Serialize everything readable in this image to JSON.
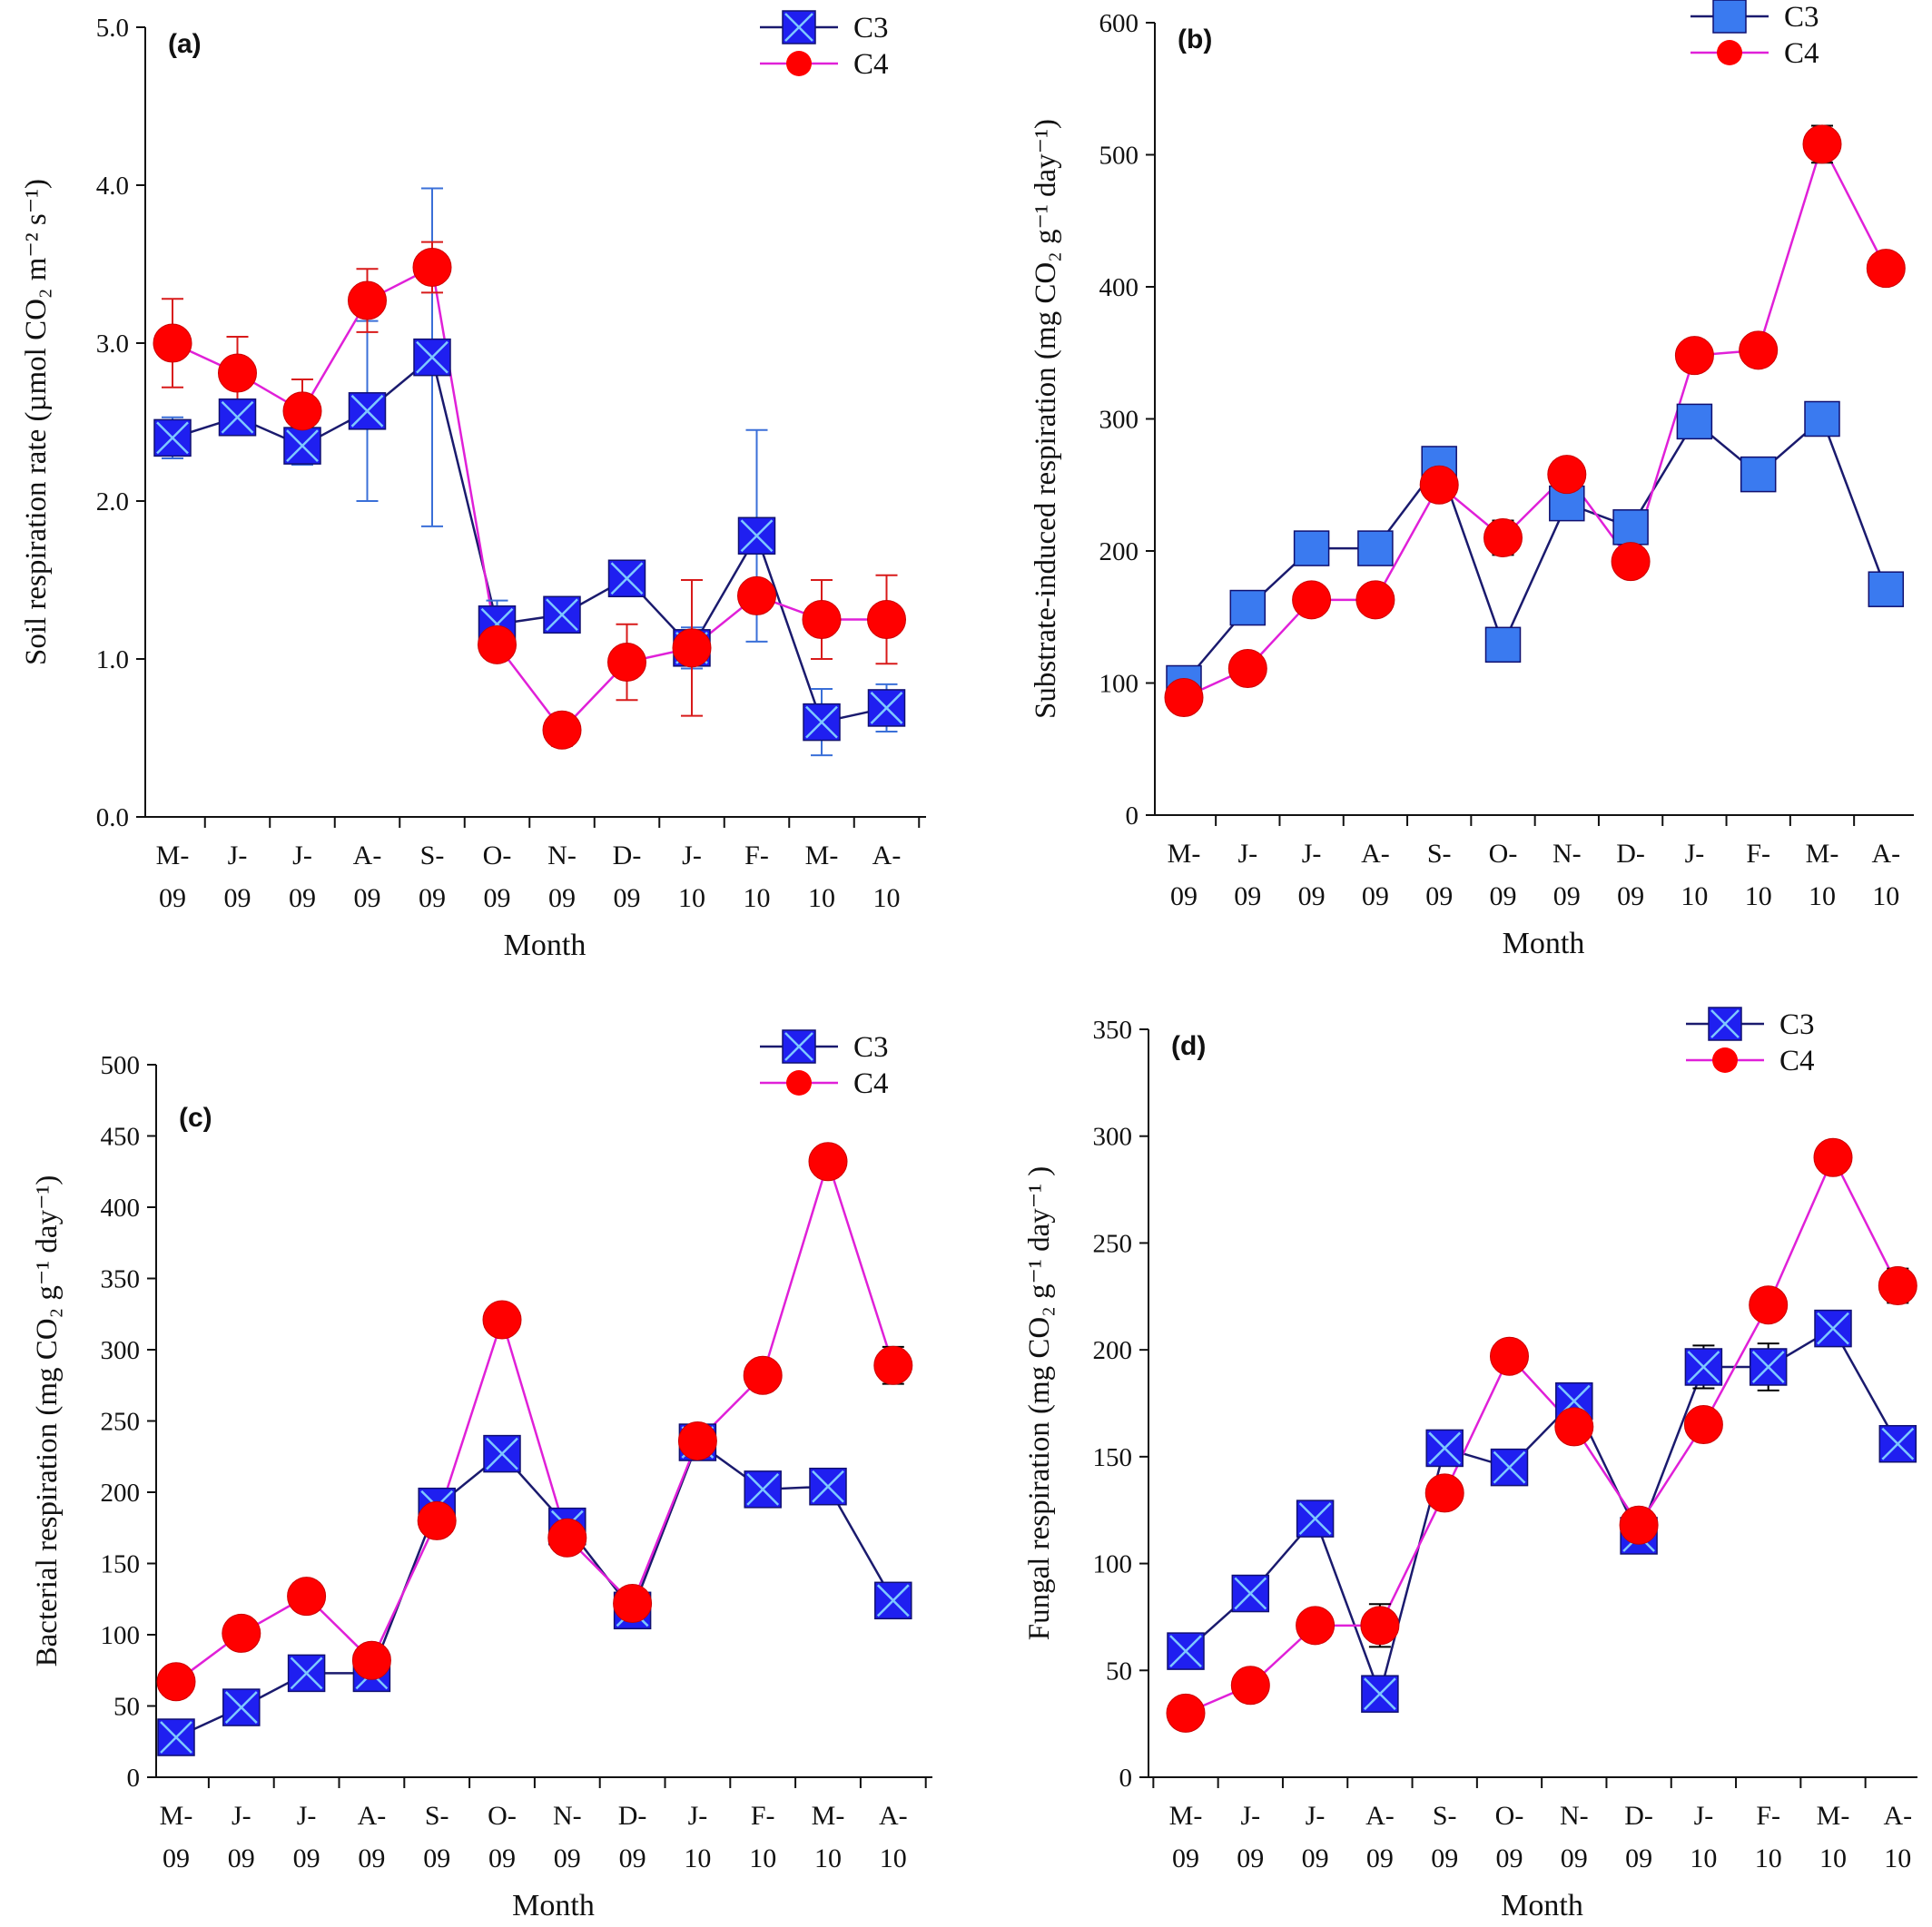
{
  "chart_data": [
    {
      "panel": "(a)",
      "type": "line",
      "categories": [
        "M-\n09",
        "J-\n09",
        "J-\n09",
        "A-\n09",
        "S-\n09",
        "O-\n09",
        "N-\n09",
        "D-\n09",
        "J-\n10",
        "F-\n10",
        "M-\n10",
        "A-\n10"
      ],
      "xlabel": "Month",
      "ylabel": "Soil respiration rate  (µmol CO₂ m⁻² s⁻¹)",
      "ylim": [
        0,
        5
      ],
      "yticks": [
        "0.0",
        "1.0",
        "2.0",
        "3.0",
        "4.0",
        "5.0"
      ],
      "legend": "top-right",
      "series": [
        {
          "name": "C3",
          "marker": "square-x",
          "values": [
            2.4,
            2.53,
            2.35,
            2.57,
            2.91,
            1.22,
            1.28,
            1.51,
            1.07,
            1.78,
            0.6,
            0.69
          ],
          "errors": [
            0.13,
            0.1,
            0.12,
            0.57,
            1.07,
            0.15,
            0,
            0,
            0.13,
            0.67,
            0.21,
            0.15
          ]
        },
        {
          "name": "C4",
          "marker": "circle",
          "values": [
            3.0,
            2.81,
            2.57,
            3.27,
            3.48,
            1.09,
            0.55,
            0.98,
            1.07,
            1.4,
            1.25,
            1.25
          ],
          "errors": [
            0.28,
            0.23,
            0.2,
            0.2,
            0.16,
            0,
            0.1,
            0.24,
            0.43,
            0,
            0.25,
            0.28
          ]
        }
      ]
    },
    {
      "panel": "(b)",
      "type": "line",
      "categories": [
        "M-\n09",
        "J-\n09",
        "J-\n09",
        "A-\n09",
        "S-\n09",
        "O-\n09",
        "N-\n09",
        "D-\n09",
        "J-\n10",
        "F-\n10",
        "M-\n10",
        "A-\n10"
      ],
      "xlabel": "Month",
      "ylabel": "Substrate-induced respiration (mg CO₂ g⁻¹ day⁻¹)",
      "ylim": [
        0,
        600
      ],
      "yticks": [
        "0",
        "100",
        "200",
        "300",
        "400",
        "500",
        "600"
      ],
      "legend": "top-right",
      "series": [
        {
          "name": "C3",
          "marker": "square",
          "values": [
            100,
            157,
            202,
            202,
            266,
            129,
            236,
            218,
            298,
            258,
            300,
            171
          ],
          "errors": [
            0,
            0,
            0,
            0,
            0,
            0,
            0,
            0,
            0,
            0,
            0,
            0
          ]
        },
        {
          "name": "C4",
          "marker": "circle",
          "values": [
            89,
            111,
            163,
            163,
            250,
            210,
            258,
            192,
            348,
            352,
            508,
            414
          ],
          "errors": [
            0,
            0,
            0,
            0,
            0,
            13,
            0,
            0,
            0,
            0,
            14,
            0
          ]
        }
      ]
    },
    {
      "panel": "(c)",
      "type": "line",
      "categories": [
        "M-\n09",
        "J-\n09",
        "J-\n09",
        "A-\n09",
        "S-\n09",
        "O-\n09",
        "N-\n09",
        "D-\n09",
        "J-\n10",
        "F-\n10",
        "M-\n10",
        "A-\n10"
      ],
      "xlabel": "Month",
      "ylabel": "Bacterial respiration (mg CO₂ g⁻¹ day⁻¹)",
      "ylim": [
        0,
        500
      ],
      "yticks": [
        "0",
        "50",
        "100",
        "150",
        "200",
        "250",
        "300",
        "350",
        "400",
        "450",
        "500"
      ],
      "legend": "top-right",
      "series": [
        {
          "name": "C3",
          "marker": "square-x",
          "values": [
            28,
            49,
            73,
            73,
            190,
            227,
            176,
            117,
            235,
            202,
            204,
            124
          ],
          "errors": [
            0,
            0,
            0,
            0,
            0,
            0,
            0,
            0,
            0,
            0,
            0,
            0
          ]
        },
        {
          "name": "C4",
          "marker": "circle",
          "values": [
            67,
            101,
            127,
            82,
            180,
            321,
            168,
            122,
            236,
            282,
            432,
            289
          ],
          "errors": [
            0,
            0,
            0,
            0,
            0,
            0,
            0,
            0,
            0,
            0,
            0,
            13
          ]
        }
      ]
    },
    {
      "panel": "(d)",
      "type": "line",
      "categories": [
        "M-\n09",
        "J-\n09",
        "J-\n09",
        "A-\n09",
        "S-\n09",
        "O-\n09",
        "N-\n09",
        "D-\n09",
        "J-\n10",
        "F-\n10",
        "M-\n10",
        "A-\n10"
      ],
      "xlabel": "Month",
      "ylabel": "Fungal respiration (mg CO₂ g⁻¹ day⁻¹ )",
      "ylim": [
        0,
        350
      ],
      "yticks": [
        "0",
        "50",
        "100",
        "150",
        "200",
        "250",
        "300",
        "350"
      ],
      "legend": "top-right",
      "series": [
        {
          "name": "C3",
          "marker": "square-x",
          "values": [
            59,
            86,
            121,
            39,
            154,
            145,
            176,
            113,
            192,
            192,
            210,
            156
          ],
          "errors": [
            0,
            0,
            0,
            8,
            0,
            0,
            0,
            0,
            10,
            11,
            0,
            0
          ]
        },
        {
          "name": "C4",
          "marker": "circle",
          "values": [
            30,
            43,
            71,
            71,
            133,
            197,
            164,
            118,
            165,
            221,
            290,
            230
          ],
          "errors": [
            0,
            0,
            0,
            10,
            0,
            0,
            0,
            0,
            0,
            0,
            0,
            8
          ]
        }
      ]
    }
  ],
  "colors": {
    "c3_line": "#1a1a6e",
    "c3_marker_fill": "#1f1ff0",
    "c3_marker_x": "#7ec8ff",
    "c3_square_b": "#3a7af0",
    "c3_error_a": "#3a6fd8",
    "c4_line": "#e020d8",
    "c4_marker": "#ff0000",
    "c4_error_a": "#d81a1a",
    "axis": "#111111"
  }
}
